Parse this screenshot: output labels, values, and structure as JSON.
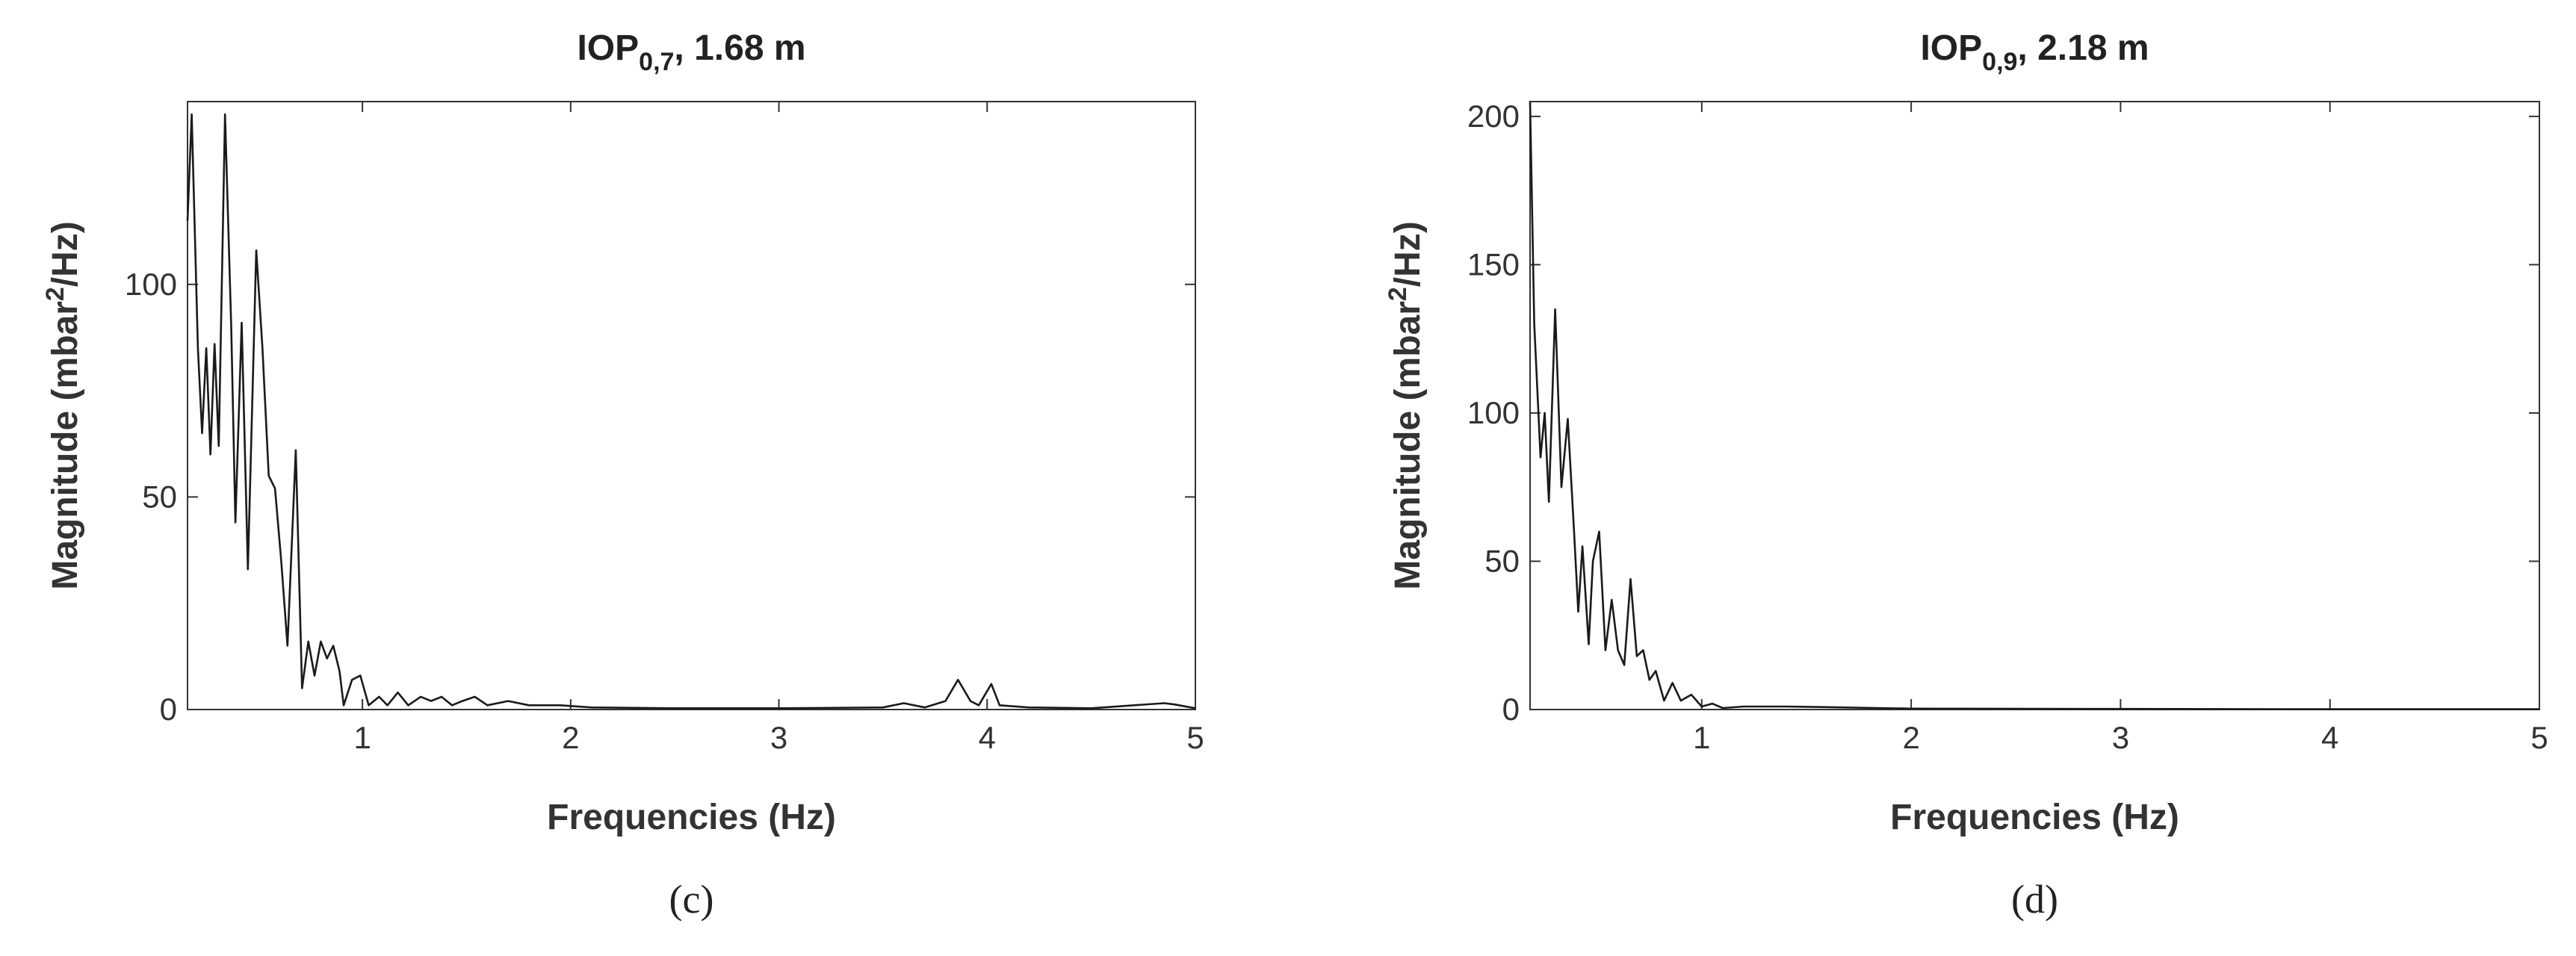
{
  "chart_data": [
    {
      "type": "line",
      "title": "IOP",
      "title_subscript": "0,7",
      "title_suffix": ", 1.68 m",
      "ylabel": "Magnitude (mbar",
      "ylabel_superscript": "2",
      "ylabel_suffix": "/Hz)",
      "xlabel": "Frequencies (Hz)",
      "panel_label": "(c)",
      "color": "#1a1a1a",
      "xlim": [
        0.16,
        5
      ],
      "xticks": [
        1,
        2,
        3,
        4,
        5
      ],
      "ylim": [
        0,
        143
      ],
      "yticks": [
        0,
        50,
        100
      ],
      "x": [
        0.16,
        0.18,
        0.21,
        0.23,
        0.25,
        0.27,
        0.29,
        0.31,
        0.34,
        0.37,
        0.39,
        0.42,
        0.45,
        0.49,
        0.52,
        0.55,
        0.58,
        0.61,
        0.64,
        0.68,
        0.71,
        0.74,
        0.77,
        0.8,
        0.83,
        0.86,
        0.89,
        0.91,
        0.95,
        0.99,
        1.03,
        1.08,
        1.12,
        1.17,
        1.22,
        1.28,
        1.33,
        1.38,
        1.43,
        1.48,
        1.54,
        1.6,
        1.7,
        1.8,
        1.95,
        2.1,
        2.5,
        3,
        3.5,
        3.6,
        3.7,
        3.8,
        3.86,
        3.92,
        3.96,
        4.02,
        4.06,
        4.2,
        4.5,
        4.85,
        4.9,
        5
      ],
      "values": [
        115,
        140,
        85,
        65,
        85,
        60,
        86,
        62,
        140,
        90,
        44,
        91,
        33,
        108,
        85,
        55,
        52,
        35,
        15,
        61,
        5,
        16,
        8,
        16,
        12,
        15,
        9,
        1,
        7,
        8,
        1,
        3,
        1,
        4,
        1,
        3,
        2,
        3,
        1,
        2,
        3,
        1,
        2,
        1,
        1,
        0.5,
        0.3,
        0.3,
        0.5,
        1.5,
        0.5,
        2,
        7,
        2,
        1,
        6,
        1,
        0.5,
        0.3,
        1.5,
        1.2,
        0.3
      ]
    },
    {
      "type": "line",
      "title": "IOP",
      "title_subscript": "0,9",
      "title_suffix": ", 2.18 m",
      "ylabel": "Magnitude (mbar",
      "ylabel_superscript": "2",
      "ylabel_suffix": "/Hz)",
      "xlabel": "Frequencies (Hz)",
      "panel_label": "(d)",
      "color": "#1a1a1a",
      "xlim": [
        0.18,
        5
      ],
      "xticks": [
        1,
        2,
        3,
        4,
        5
      ],
      "ylim": [
        0,
        205
      ],
      "yticks": [
        0,
        50,
        100,
        150,
        200
      ],
      "x": [
        0.18,
        0.2,
        0.23,
        0.25,
        0.27,
        0.3,
        0.33,
        0.36,
        0.39,
        0.41,
        0.43,
        0.46,
        0.48,
        0.51,
        0.54,
        0.57,
        0.6,
        0.63,
        0.66,
        0.69,
        0.72,
        0.75,
        0.78,
        0.82,
        0.86,
        0.9,
        0.95,
        1.0,
        1.05,
        1.1,
        1.2,
        1.4,
        1.6,
        2,
        3,
        4,
        5
      ],
      "values": [
        205,
        130,
        85,
        100,
        70,
        135,
        75,
        98,
        60,
        33,
        55,
        22,
        50,
        60,
        20,
        37,
        20,
        15,
        44,
        18,
        20,
        10,
        13,
        3,
        9,
        3,
        5,
        1,
        2,
        0.5,
        1,
        1,
        0.8,
        0.3,
        0.2,
        0.1,
        0.1
      ]
    }
  ]
}
